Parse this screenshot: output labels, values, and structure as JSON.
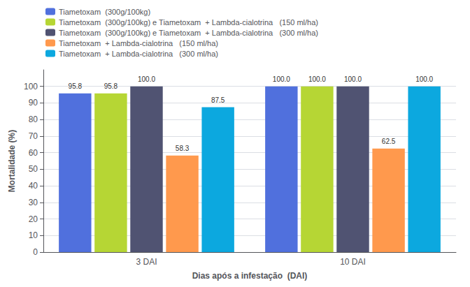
{
  "chart_data": {
    "type": "bar",
    "xlabel": "Dias após a infestação  (DAI)",
    "ylabel": "Mortalidade (%)",
    "categories": [
      "3 DAI",
      "10 DAI"
    ],
    "series": [
      {
        "name": "Tiametoxam  (300g/100kg)",
        "values": [
          95.8,
          100.0
        ],
        "value_labels": [
          "95.8",
          "100.0"
        ]
      },
      {
        "name": "Tiametoxam  (300g/100kg) e Tiametoxam  + Lambda-cialotrina   (150 ml/ha)",
        "values": [
          95.8,
          100.0
        ],
        "value_labels": [
          "95.8",
          "100.0"
        ]
      },
      {
        "name": "Tiametoxam  (300g/100kg) e Tiametoxam  + Lambda-cialotrina   (300 ml/ha)",
        "values": [
          100.0,
          100.0
        ],
        "value_labels": [
          "100.0",
          "100.0"
        ]
      },
      {
        "name": "Tiametoxam  + Lambda-cialotrina   (150 ml/ha)",
        "values": [
          58.3,
          62.5
        ],
        "value_labels": [
          "58.3",
          "62.5"
        ]
      },
      {
        "name": "Tiametoxam  + Lambda-cialotrina   (300 ml/ha)",
        "values": [
          87.5,
          100.0
        ],
        "value_labels": [
          "87.5",
          "100.0"
        ]
      }
    ],
    "ylim": [
      0,
      110
    ],
    "yticks": [
      0,
      10,
      20,
      30,
      40,
      50,
      60,
      70,
      80,
      90,
      100
    ],
    "grid": true,
    "legend": "top",
    "data_labels": true
  }
}
